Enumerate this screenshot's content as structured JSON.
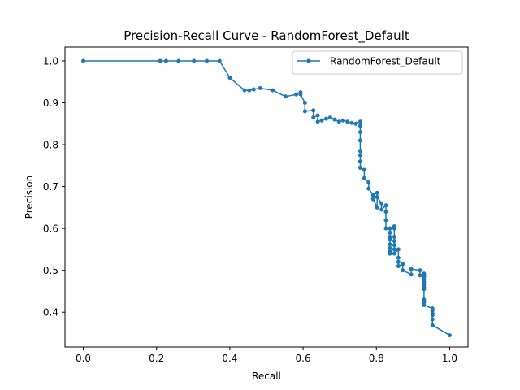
{
  "chart_data": {
    "type": "line",
    "title": "Precision-Recall Curve - RandomForest_Default",
    "xlabel": "Recall",
    "ylabel": "Precision",
    "xlim": [
      -0.05,
      1.05
    ],
    "ylim": [
      0.317,
      1.033
    ],
    "xticks": [
      "0.0",
      "0.2",
      "0.4",
      "0.6",
      "0.8",
      "1.0"
    ],
    "yticks": [
      "0.4",
      "0.5",
      "0.6",
      "0.7",
      "0.8",
      "0.9",
      "1.0"
    ],
    "grid": false,
    "legend_position": "top-right",
    "colors": {
      "series": "#1f77b4"
    },
    "series": [
      {
        "name": "RandomForest_Default",
        "marker": "dot",
        "x": [
          1.0,
          0.953,
          0.953,
          0.953,
          0.953,
          0.953,
          0.953,
          0.93,
          0.93,
          0.93,
          0.93,
          0.93,
          0.93,
          0.93,
          0.93,
          0.93,
          0.93,
          0.93,
          0.93,
          0.919,
          0.919,
          0.895,
          0.895,
          0.872,
          0.872,
          0.86,
          0.86,
          0.86,
          0.86,
          0.849,
          0.849,
          0.849,
          0.849,
          0.849,
          0.849,
          0.849,
          0.837,
          0.837,
          0.837,
          0.837,
          0.837,
          0.837,
          0.837,
          0.837,
          0.837,
          0.826,
          0.826,
          0.826,
          0.826,
          0.814,
          0.814,
          0.802,
          0.802,
          0.802,
          0.791,
          0.791,
          0.779,
          0.779,
          0.767,
          0.767,
          0.756,
          0.756,
          0.756,
          0.756,
          0.756,
          0.756,
          0.756,
          0.756,
          0.744,
          0.733,
          0.721,
          0.709,
          0.698,
          0.686,
          0.674,
          0.663,
          0.651,
          0.64,
          0.64,
          0.628,
          0.628,
          0.605,
          0.605,
          0.593,
          0.593,
          0.581,
          0.552,
          0.517,
          0.483,
          0.465,
          0.453,
          0.44,
          0.4,
          0.372,
          0.337,
          0.302,
          0.26,
          0.226,
          0.21,
          0.0
        ],
        "y": [
          0.345,
          0.369,
          0.383,
          0.393,
          0.397,
          0.404,
          0.409,
          0.417,
          0.424,
          0.43,
          0.455,
          0.46,
          0.466,
          0.472,
          0.478,
          0.484,
          0.486,
          0.488,
          0.492,
          0.488,
          0.5,
          0.503,
          0.49,
          0.5,
          0.515,
          0.51,
          0.52,
          0.53,
          0.55,
          0.54,
          0.55,
          0.56,
          0.57,
          0.58,
          0.6,
          0.605,
          0.6,
          0.59,
          0.575,
          0.562,
          0.553,
          0.545,
          0.54,
          0.58,
          0.6,
          0.6,
          0.62,
          0.64,
          0.655,
          0.645,
          0.66,
          0.675,
          0.685,
          0.65,
          0.67,
          0.68,
          0.695,
          0.71,
          0.72,
          0.74,
          0.745,
          0.76,
          0.775,
          0.785,
          0.81,
          0.83,
          0.845,
          0.855,
          0.85,
          0.852,
          0.855,
          0.858,
          0.855,
          0.86,
          0.865,
          0.862,
          0.858,
          0.855,
          0.87,
          0.865,
          0.882,
          0.88,
          0.9,
          0.92,
          0.925,
          0.92,
          0.915,
          0.93,
          0.935,
          0.932,
          0.93,
          0.93,
          0.96,
          1.0,
          1.0,
          1.0,
          1.0,
          1.0,
          1.0,
          1.0
        ]
      }
    ]
  }
}
